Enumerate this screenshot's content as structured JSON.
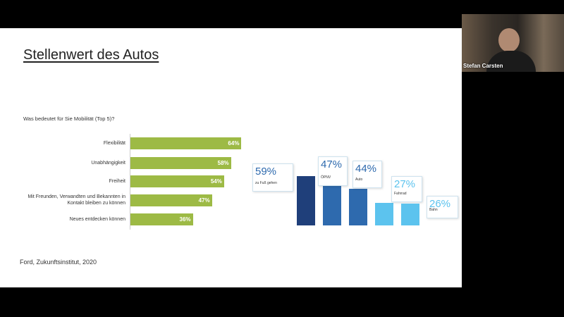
{
  "slide": {
    "title": "Stellenwert des Autos",
    "source": "Ford, Zukunftsinstitut, 2020"
  },
  "participant": {
    "name": "Stefan Carsten"
  },
  "chart_data": [
    {
      "type": "hbar",
      "title": "Was bedeutet für Sie Mobilität (Top 5)?",
      "categories": [
        "Flexibilität",
        "Unabhängigkeit",
        "Freiheit",
        "Mit Freunden, Verwandten und Bekannten in Kontakt bleiben zu können",
        "Neues entdecken können"
      ],
      "values": [
        64,
        58,
        54,
        47,
        36
      ],
      "value_labels": [
        "64%",
        "58%",
        "54%",
        "47%",
        "36%"
      ],
      "color": "#9dba45"
    },
    {
      "type": "bar",
      "categories": [
        "zu Fuß gehen",
        "ÖPNV",
        "Auto",
        "Fahrrad",
        "Bahn"
      ],
      "values": [
        59,
        47,
        44,
        27,
        26
      ],
      "value_labels": [
        "59%",
        "47%",
        "44%",
        "27%",
        "26%"
      ],
      "colors": [
        "#1f3f7a",
        "#2e6aae",
        "#2e6aae",
        "#5cc3ee",
        "#5cc3ee"
      ]
    }
  ]
}
